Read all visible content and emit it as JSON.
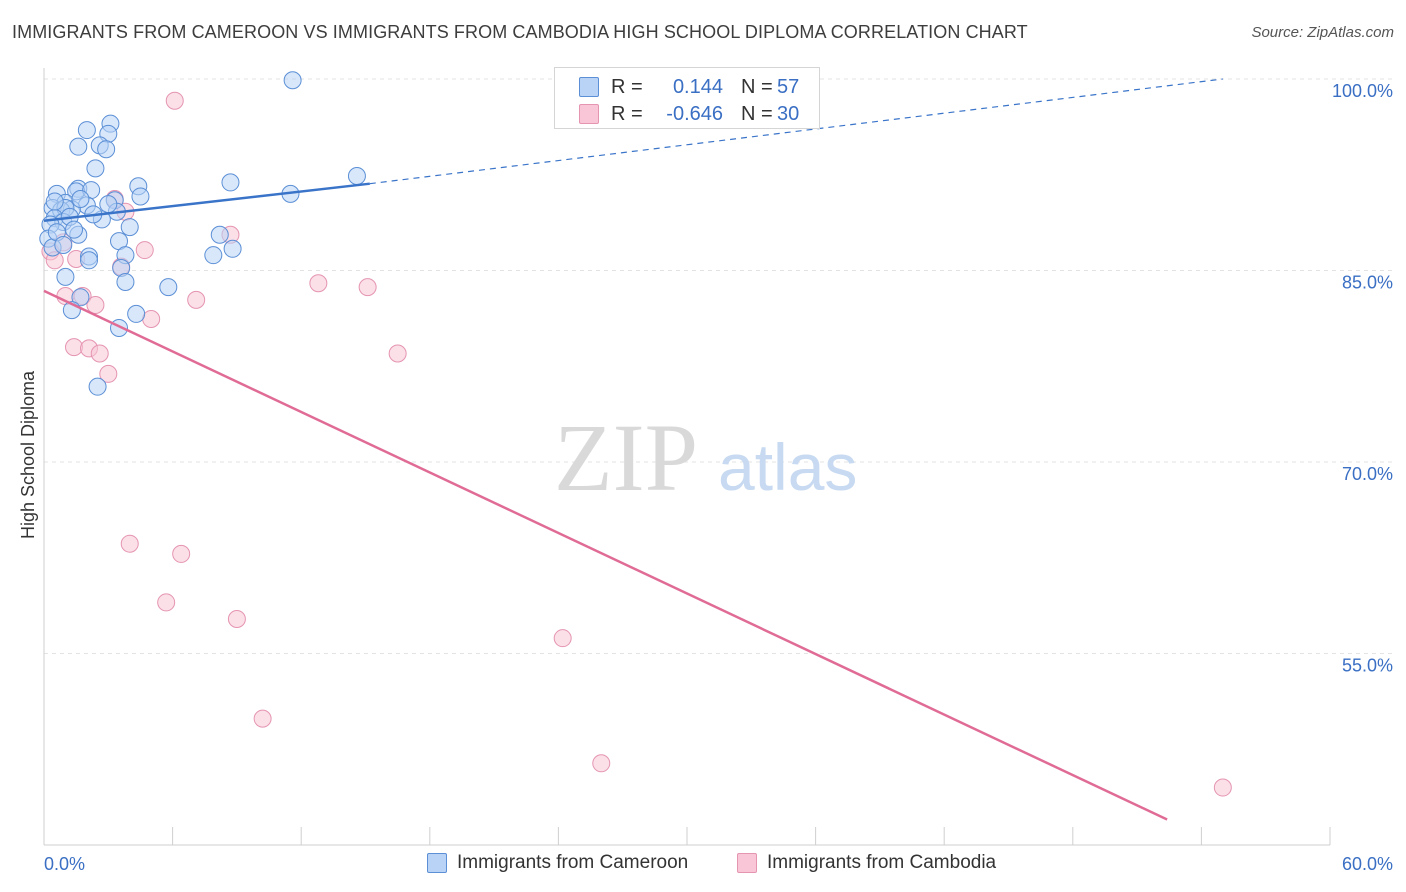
{
  "header": {
    "title": "IMMIGRANTS FROM CAMEROON VS IMMIGRANTS FROM CAMBODIA HIGH SCHOOL DIPLOMA CORRELATION CHART",
    "source": "Source: ZipAtlas.com"
  },
  "legend": {
    "rows": [
      {
        "r_label": "R =",
        "r_value": "0.144",
        "n_label": "N =",
        "n_value": "57"
      },
      {
        "r_label": "R =",
        "r_value": "-0.646",
        "n_label": "N =",
        "n_value": "30"
      }
    ]
  },
  "bottom_legend": {
    "cameroon": "Immigrants from Cameroon",
    "cambodia": "Immigrants from Cambodia"
  },
  "watermark": {
    "zip": "ZIP",
    "atlas": "atlas"
  },
  "colors": {
    "cameroon_fill": "#b8d3f5",
    "cameroon_stroke": "#5b8fd6",
    "cameroon_line": "#3a74c9",
    "cambodia_fill": "#f8c6d6",
    "cambodia_stroke": "#e594b1",
    "cambodia_line": "#e06c96",
    "axis_label": "#3a6fc4"
  },
  "chart_data": {
    "type": "scatter",
    "title": "IMMIGRANTS FROM CAMEROON VS IMMIGRANTS FROM CAMBODIA HIGH SCHOOL DIPLOMA CORRELATION CHART",
    "xlabel": "",
    "ylabel": "High School Diploma",
    "xlim": [
      0,
      60
    ],
    "ylim": [
      42,
      102
    ],
    "x_tick_labels": [
      "0.0%",
      "60.0%"
    ],
    "y_ticks": [
      55,
      70,
      85,
      100
    ],
    "y_tick_labels": [
      "55.0%",
      "70.0%",
      "85.0%",
      "100.0%"
    ],
    "grid": true,
    "legend_position": "top-center",
    "series": [
      {
        "name": "Immigrants from Cameroon",
        "stats": {
          "R": 0.144,
          "N": 57
        },
        "trend": {
          "x": [
            0,
            15.2
          ],
          "y": [
            88.9,
            91.8
          ],
          "dashed_extension_to": [
            55,
            100.0
          ]
        },
        "points": [
          [
            11.6,
            99.9
          ],
          [
            3.1,
            96.5
          ],
          [
            2.0,
            96.0
          ],
          [
            3.0,
            95.7
          ],
          [
            1.6,
            94.7
          ],
          [
            2.6,
            94.8
          ],
          [
            2.9,
            94.5
          ],
          [
            2.4,
            93.0
          ],
          [
            14.6,
            92.4
          ],
          [
            4.4,
            91.6
          ],
          [
            8.7,
            91.9
          ],
          [
            1.6,
            91.4
          ],
          [
            1.5,
            91.2
          ],
          [
            2.2,
            91.3
          ],
          [
            0.6,
            91.0
          ],
          [
            4.5,
            90.8
          ],
          [
            11.5,
            91.0
          ],
          [
            3.3,
            90.5
          ],
          [
            1.0,
            90.3
          ],
          [
            2.0,
            90.1
          ],
          [
            0.4,
            89.9
          ],
          [
            1.3,
            89.8
          ],
          [
            0.8,
            89.7
          ],
          [
            1.0,
            89.9
          ],
          [
            3.4,
            89.6
          ],
          [
            0.5,
            89.1
          ],
          [
            0.9,
            88.8
          ],
          [
            0.3,
            88.6
          ],
          [
            1.6,
            87.8
          ],
          [
            8.2,
            87.8
          ],
          [
            0.2,
            87.5
          ],
          [
            3.5,
            87.3
          ],
          [
            0.4,
            86.8
          ],
          [
            8.8,
            86.7
          ],
          [
            7.9,
            86.2
          ],
          [
            2.1,
            86.1
          ],
          [
            3.8,
            86.2
          ],
          [
            2.1,
            85.8
          ],
          [
            3.6,
            85.2
          ],
          [
            1.0,
            84.5
          ],
          [
            3.8,
            84.1
          ],
          [
            5.8,
            83.7
          ],
          [
            1.7,
            82.9
          ],
          [
            1.3,
            81.9
          ],
          [
            4.3,
            81.6
          ],
          [
            3.5,
            80.5
          ],
          [
            2.5,
            75.9
          ],
          [
            0.6,
            88.0
          ],
          [
            1.2,
            89.2
          ],
          [
            2.7,
            89.0
          ],
          [
            1.4,
            88.2
          ],
          [
            4.0,
            88.4
          ],
          [
            0.9,
            87.0
          ],
          [
            2.3,
            89.4
          ],
          [
            3.0,
            90.2
          ],
          [
            1.7,
            90.6
          ],
          [
            0.5,
            90.4
          ]
        ]
      },
      {
        "name": "Immigrants from Cambodia",
        "stats": {
          "R": -0.646,
          "N": 30
        },
        "trend": {
          "x": [
            0,
            52.4
          ],
          "y": [
            83.4,
            42.0
          ]
        },
        "points": [
          [
            6.1,
            98.3
          ],
          [
            3.3,
            90.6
          ],
          [
            3.8,
            89.6
          ],
          [
            0.9,
            87.2
          ],
          [
            8.7,
            87.8
          ],
          [
            0.3,
            86.5
          ],
          [
            4.7,
            86.6
          ],
          [
            0.5,
            85.8
          ],
          [
            1.5,
            85.9
          ],
          [
            3.6,
            85.3
          ],
          [
            12.8,
            84.0
          ],
          [
            15.1,
            83.7
          ],
          [
            1.0,
            83.0
          ],
          [
            1.8,
            83.0
          ],
          [
            7.1,
            82.7
          ],
          [
            2.4,
            82.3
          ],
          [
            5.0,
            81.2
          ],
          [
            1.4,
            79.0
          ],
          [
            2.1,
            78.9
          ],
          [
            2.6,
            78.5
          ],
          [
            16.5,
            78.5
          ],
          [
            3.0,
            76.9
          ],
          [
            4.0,
            63.6
          ],
          [
            6.4,
            62.8
          ],
          [
            5.7,
            59.0
          ],
          [
            9.0,
            57.7
          ],
          [
            24.2,
            56.2
          ],
          [
            10.2,
            49.9
          ],
          [
            26.0,
            46.4
          ],
          [
            55.0,
            44.5
          ]
        ]
      }
    ]
  }
}
